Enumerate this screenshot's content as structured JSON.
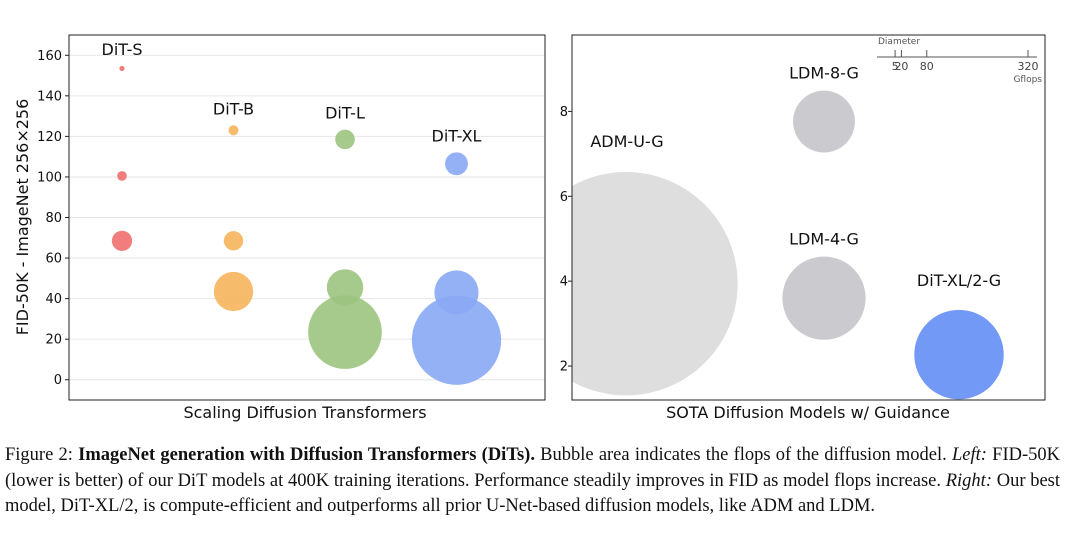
{
  "chart_data": [
    {
      "type": "scatter",
      "xlabel": "Scaling Diffusion Transformers",
      "ylabel": "FID-50K - ImageNet 256×256",
      "ylim": [
        -10,
        170
      ],
      "yticks": [
        0,
        20,
        40,
        60,
        80,
        100,
        120,
        140,
        160
      ],
      "grid": true,
      "categories": [
        "DiT-S",
        "DiT-B",
        "DiT-L",
        "DiT-XL"
      ],
      "bubble_size": "flops (bubble area)",
      "series": [
        {
          "name": "DiT-S",
          "color": "#ef6f6f",
          "points": [
            {
              "fid": 153.5,
              "gflops": 0.4
            },
            {
              "fid": 100.5,
              "gflops": 1.4
            },
            {
              "fid": 68.5,
              "gflops": 6.1
            }
          ]
        },
        {
          "name": "DiT-B",
          "color": "#f5b55b",
          "points": [
            {
              "fid": 123,
              "gflops": 1.5
            },
            {
              "fid": 68.5,
              "gflops": 5.6
            },
            {
              "fid": 43.5,
              "gflops": 23
            }
          ]
        },
        {
          "name": "DiT-L",
          "color": "#9cc47f",
          "points": [
            {
              "fid": 118.5,
              "gflops": 5.7
            },
            {
              "fid": 45.5,
              "gflops": 19.7
            },
            {
              "fid": 23.5,
              "gflops": 80.7
            }
          ]
        },
        {
          "name": "DiT-XL",
          "color": "#89a8f5",
          "points": [
            {
              "fid": 106.5,
              "gflops": 7.8
            },
            {
              "fid": 43,
              "gflops": 29.1
            },
            {
              "fid": 19.5,
              "gflops": 118.6
            }
          ]
        }
      ]
    },
    {
      "type": "scatter",
      "xlabel": "SOTA Diffusion Models w/ Guidance",
      "ylabel": "",
      "ylim": [
        1.2,
        9.8
      ],
      "yticks": [
        2,
        4,
        6,
        8
      ],
      "grid": false,
      "bubble_size": "flops (bubble area)",
      "points": [
        {
          "name": "ADM-U-G",
          "fid": 3.94,
          "gflops": 742,
          "color": "#dcdcdc",
          "x": 1
        },
        {
          "name": "LDM-8-G",
          "fid": 7.76,
          "gflops": 57,
          "color": "#c8c8cc",
          "x": 2
        },
        {
          "name": "LDM-4-G",
          "fid": 3.6,
          "gflops": 103,
          "color": "#c8c8cc",
          "x": 2
        },
        {
          "name": "DiT-XL/2-G",
          "fid": 2.27,
          "gflops": 119,
          "color": "#6b93f5",
          "x": 3
        }
      ],
      "legend": {
        "title": "Diameter",
        "ticks": [
          5,
          20,
          80,
          320
        ],
        "unit": "Gflops",
        "placement": "top-right"
      }
    }
  ],
  "caption": {
    "label": "Figure 2: ",
    "bold": "ImageNet generation with Diffusion Transformers (DiTs).",
    "part1": " Bubble area indicates the flops of the diffusion model. ",
    "left_label": "Left:",
    "part2": " FID-50K (lower is better) of our DiT models at 400K training iterations. Performance steadily improves in FID as model flops increase. ",
    "right_label": "Right:",
    "part3": " Our best model, DiT-XL/2, is compute-efficient and outperforms all prior U-Net-based diffusion models, like ADM and LDM."
  }
}
